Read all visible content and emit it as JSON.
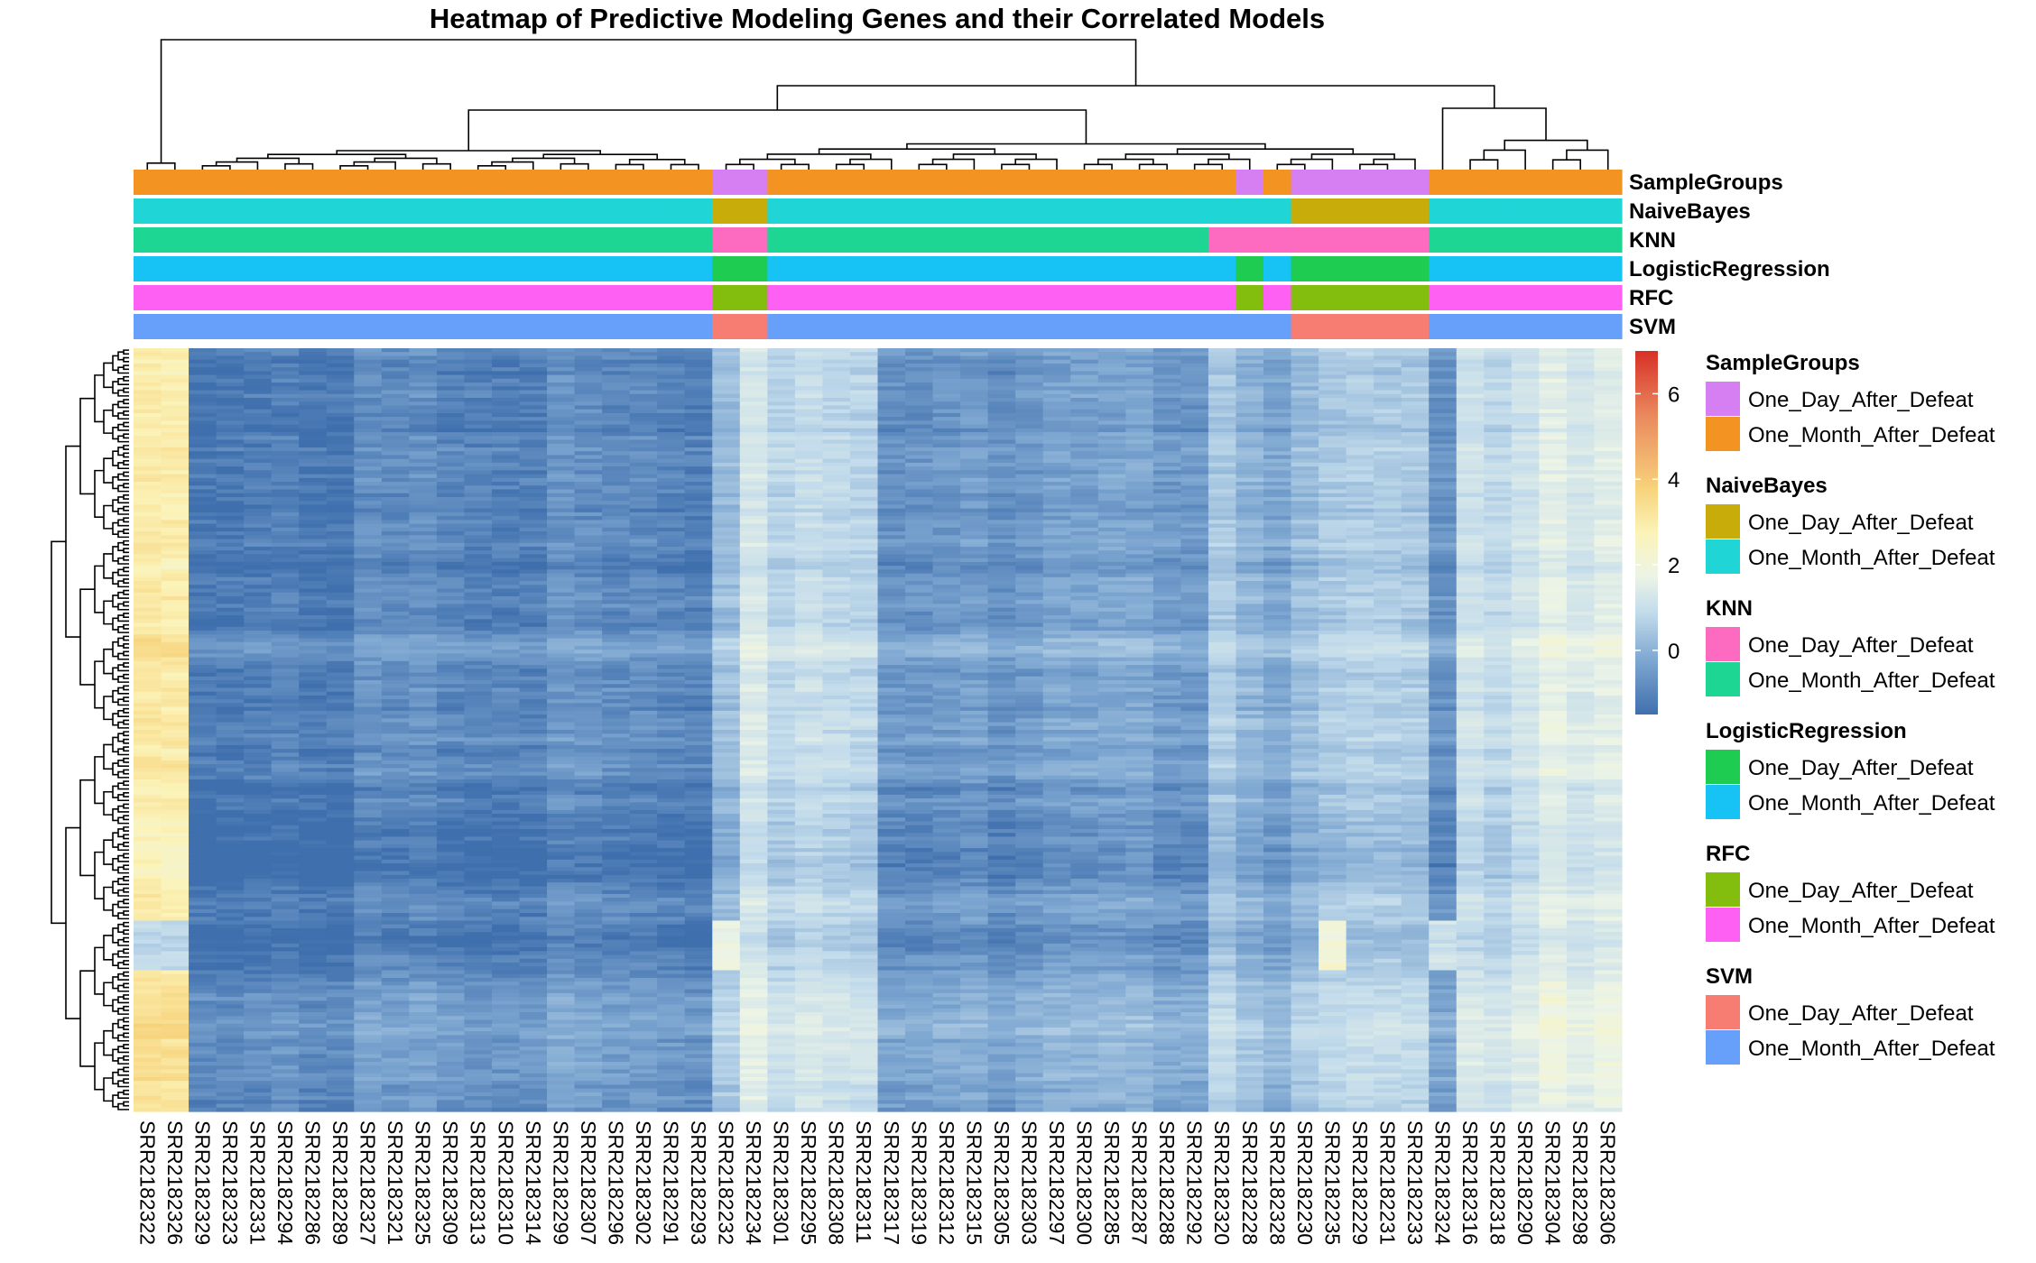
{
  "chart_data": {
    "type": "heatmap",
    "title": "Heatmap of Predictive Modeling Genes and their Correlated Models",
    "color_scale": {
      "ticks": [
        0,
        2,
        4,
        6
      ],
      "range": [
        -1.5,
        7
      ],
      "colors": [
        "#3f6fad",
        "#7ea7d1",
        "#c2dbeb",
        "#ecf4e6",
        "#fbf3b8",
        "#f7d37c",
        "#ea8a5e",
        "#d73027"
      ]
    },
    "columns": [
      "SRR2182322",
      "SRR2182326",
      "SRR2182329",
      "SRR2182323",
      "SRR2182331",
      "SRR2182294",
      "SRR2182286",
      "SRR2182289",
      "SRR2182327",
      "SRR2182321",
      "SRR2182325",
      "SRR2182309",
      "SRR2182313",
      "SRR2182310",
      "SRR2182314",
      "SRR2182299",
      "SRR2182307",
      "SRR2182296",
      "SRR2182302",
      "SRR2182291",
      "SRR2182293",
      "SRR2182232",
      "SRR2182234",
      "SRR2182301",
      "SRR2182295",
      "SRR2182308",
      "SRR2182311",
      "SRR2182317",
      "SRR2182319",
      "SRR2182312",
      "SRR2182315",
      "SRR2182305",
      "SRR2182303",
      "SRR2182297",
      "SRR2182300",
      "SRR2182285",
      "SRR2182287",
      "SRR2182288",
      "SRR2182292",
      "SRR2182320",
      "SRR2182228",
      "SRR2182328",
      "SRR2182230",
      "SRR2182235",
      "SRR2182229",
      "SRR2182231",
      "SRR2182233",
      "SRR2182324",
      "SRR2182316",
      "SRR2182318",
      "SRR2182290",
      "SRR2182304",
      "SRR2182298",
      "SRR2182306"
    ],
    "annotation_rows": [
      {
        "name": "SampleGroups",
        "values": [
          "M",
          "M",
          "M",
          "M",
          "M",
          "M",
          "M",
          "M",
          "M",
          "M",
          "M",
          "M",
          "M",
          "M",
          "M",
          "M",
          "M",
          "M",
          "M",
          "M",
          "M",
          "D",
          "D",
          "M",
          "M",
          "M",
          "M",
          "M",
          "M",
          "M",
          "M",
          "M",
          "M",
          "M",
          "M",
          "M",
          "M",
          "M",
          "M",
          "M",
          "D",
          "M",
          "D",
          "D",
          "D",
          "D",
          "D",
          "M",
          "M",
          "M",
          "M",
          "M",
          "M",
          "M"
        ]
      },
      {
        "name": "NaiveBayes",
        "values": [
          "M",
          "M",
          "M",
          "M",
          "M",
          "M",
          "M",
          "M",
          "M",
          "M",
          "M",
          "M",
          "M",
          "M",
          "M",
          "M",
          "M",
          "M",
          "M",
          "M",
          "M",
          "D",
          "D",
          "M",
          "M",
          "M",
          "M",
          "M",
          "M",
          "M",
          "M",
          "M",
          "M",
          "M",
          "M",
          "M",
          "M",
          "M",
          "M",
          "M",
          "M",
          "M",
          "D",
          "D",
          "D",
          "D",
          "D",
          "M",
          "M",
          "M",
          "M",
          "M",
          "M",
          "M"
        ]
      },
      {
        "name": "KNN",
        "values": [
          "M",
          "M",
          "M",
          "M",
          "M",
          "M",
          "M",
          "M",
          "M",
          "M",
          "M",
          "M",
          "M",
          "M",
          "M",
          "M",
          "M",
          "M",
          "M",
          "M",
          "M",
          "D",
          "D",
          "M",
          "M",
          "M",
          "M",
          "M",
          "M",
          "M",
          "M",
          "M",
          "M",
          "M",
          "M",
          "M",
          "M",
          "M",
          "M",
          "D",
          "D",
          "D",
          "D",
          "D",
          "D",
          "D",
          "D",
          "M",
          "M",
          "M",
          "M",
          "M",
          "M",
          "M"
        ]
      },
      {
        "name": "LogisticRegression",
        "values": [
          "M",
          "M",
          "M",
          "M",
          "M",
          "M",
          "M",
          "M",
          "M",
          "M",
          "M",
          "M",
          "M",
          "M",
          "M",
          "M",
          "M",
          "M",
          "M",
          "M",
          "M",
          "D",
          "D",
          "M",
          "M",
          "M",
          "M",
          "M",
          "M",
          "M",
          "M",
          "M",
          "M",
          "M",
          "M",
          "M",
          "M",
          "M",
          "M",
          "M",
          "D",
          "M",
          "D",
          "D",
          "D",
          "D",
          "D",
          "M",
          "M",
          "M",
          "M",
          "M",
          "M",
          "M"
        ]
      },
      {
        "name": "RFC",
        "values": [
          "M",
          "M",
          "M",
          "M",
          "M",
          "M",
          "M",
          "M",
          "M",
          "M",
          "M",
          "M",
          "M",
          "M",
          "M",
          "M",
          "M",
          "M",
          "M",
          "M",
          "M",
          "D",
          "D",
          "M",
          "M",
          "M",
          "M",
          "M",
          "M",
          "M",
          "M",
          "M",
          "M",
          "M",
          "M",
          "M",
          "M",
          "M",
          "M",
          "M",
          "D",
          "M",
          "D",
          "D",
          "D",
          "D",
          "D",
          "M",
          "M",
          "M",
          "M",
          "M",
          "M",
          "M"
        ]
      },
      {
        "name": "SVM",
        "values": [
          "M",
          "M",
          "M",
          "M",
          "M",
          "M",
          "M",
          "M",
          "M",
          "M",
          "M",
          "M",
          "M",
          "M",
          "M",
          "M",
          "M",
          "M",
          "M",
          "M",
          "M",
          "D",
          "D",
          "M",
          "M",
          "M",
          "M",
          "M",
          "M",
          "M",
          "M",
          "M",
          "M",
          "M",
          "M",
          "M",
          "M",
          "M",
          "M",
          "M",
          "M",
          "M",
          "D",
          "D",
          "D",
          "D",
          "D",
          "M",
          "M",
          "M",
          "M",
          "M",
          "M",
          "M"
        ]
      }
    ],
    "approx_column_mean_values": [
      3.8,
      3.7,
      -1.2,
      -1.2,
      -1.1,
      -1.0,
      -1.2,
      -1.2,
      -0.7,
      -0.8,
      -0.7,
      -0.9,
      -1.0,
      -1.0,
      -1.0,
      -0.6,
      -0.7,
      -0.8,
      -0.8,
      -0.9,
      -1.0,
      0.3,
      1.6,
      0.9,
      1.2,
      1.0,
      0.9,
      -0.6,
      -0.6,
      -0.5,
      -0.4,
      -0.7,
      -0.5,
      -0.3,
      -0.3,
      -0.2,
      -0.2,
      -0.5,
      -0.5,
      0.6,
      0.1,
      -0.2,
      0.3,
      0.6,
      0.7,
      0.7,
      0.6,
      -0.6,
      1.3,
      1.0,
      1.4,
      2.0,
      1.6,
      1.9
    ],
    "legends": [
      {
        "title": "SampleGroups",
        "items": [
          {
            "label": "One_Day_After_Defeat",
            "color": "#d57ff2"
          },
          {
            "label": "One_Month_After_Defeat",
            "color": "#f39422"
          }
        ]
      },
      {
        "title": "NaiveBayes",
        "items": [
          {
            "label": "One_Day_After_Defeat",
            "color": "#c8ac0a"
          },
          {
            "label": "One_Month_After_Defeat",
            "color": "#1fd5d6"
          }
        ]
      },
      {
        "title": "KNN",
        "items": [
          {
            "label": "One_Day_After_Defeat",
            "color": "#fc6bbf"
          },
          {
            "label": "One_Month_After_Defeat",
            "color": "#1ed693"
          }
        ]
      },
      {
        "title": "LogisticRegression",
        "items": [
          {
            "label": "One_Day_After_Defeat",
            "color": "#1dcc50"
          },
          {
            "label": "One_Month_After_Defeat",
            "color": "#17c2f4"
          }
        ]
      },
      {
        "title": "RFC",
        "items": [
          {
            "label": "One_Day_After_Defeat",
            "color": "#83bd0d"
          },
          {
            "label": "One_Month_After_Defeat",
            "color": "#fd60f2"
          }
        ]
      },
      {
        "title": "SVM",
        "items": [
          {
            "label": "One_Day_After_Defeat",
            "color": "#f77d73"
          },
          {
            "label": "One_Month_After_Defeat",
            "color": "#67a0fa"
          }
        ]
      }
    ]
  }
}
